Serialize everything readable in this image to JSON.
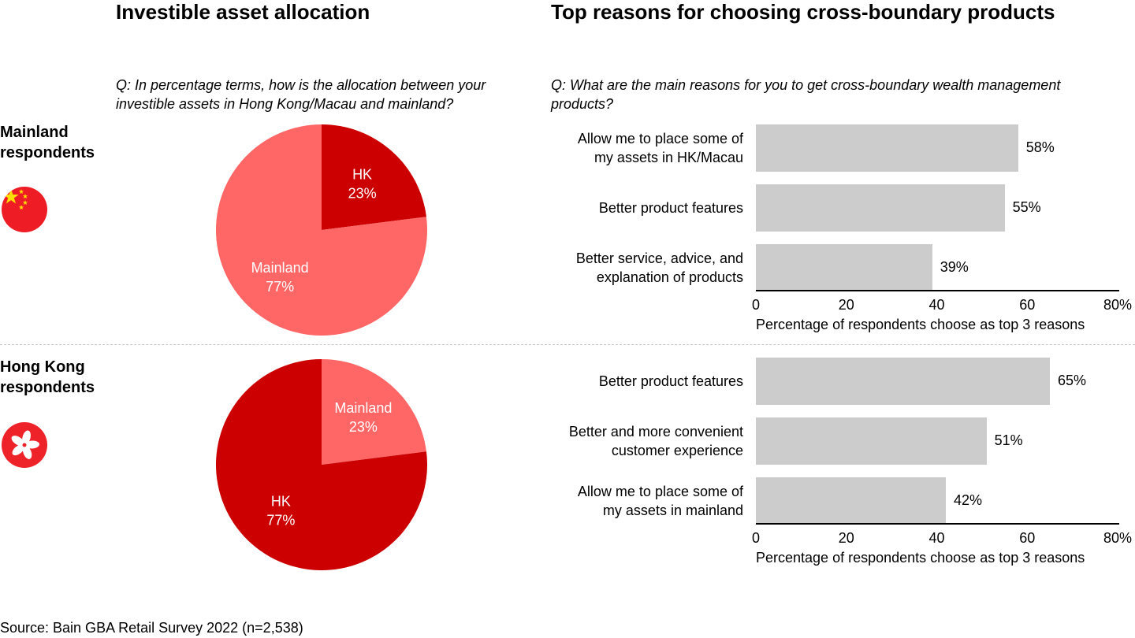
{
  "headings": {
    "left": "Investible asset allocation",
    "right": "Top reasons for choosing cross-boundary products"
  },
  "questions": {
    "left": "Q: In percentage terms, how is the allocation between your investible assets in Hong Kong/Macau and mainland?",
    "right": "Q: What are the main reasons for you to get cross-boundary wealth management products?"
  },
  "groups": {
    "mainland": {
      "label_line1": "Mainland",
      "label_line2": "respondents",
      "flag": "china-flag-icon"
    },
    "hongkong": {
      "label_line1": "Hong Kong",
      "label_line2": "respondents",
      "flag": "hong-kong-flag-icon"
    }
  },
  "colors": {
    "pie_dark": "#cc0000",
    "pie_light": "#ff6666",
    "bar": "#cccccc",
    "china_red": "#ee1c25",
    "china_star": "#ffde00",
    "hk_red": "#ee2229"
  },
  "source": "Source: Bain GBA Retail Survey 2022 (n=2,538)",
  "chart_data": [
    {
      "type": "pie",
      "group": "Mainland respondents",
      "slices": [
        {
          "name": "HK",
          "value": 23,
          "label": "HK",
          "pct": "23%"
        },
        {
          "name": "Mainland",
          "value": 77,
          "label": "Mainland",
          "pct": "77%"
        }
      ]
    },
    {
      "type": "bar",
      "group": "Mainland respondents",
      "orientation": "horizontal",
      "categories": [
        "Allow me to place some of my assets in HK/Macau",
        "Better product features",
        "Better service, advice, and explanation of products"
      ],
      "category_lines": [
        [
          "Allow me to place some of",
          "my assets in HK/Macau"
        ],
        [
          "Better product features"
        ],
        [
          "Better service, advice, and",
          "explanation of products"
        ]
      ],
      "values": [
        58,
        55,
        39
      ],
      "value_labels": [
        "58%",
        "55%",
        "39%"
      ],
      "xlim": [
        0,
        80
      ],
      "ticks": [
        "0",
        "20",
        "40",
        "60",
        "80%"
      ],
      "xlabel": "Percentage of respondents choose as top 3 reasons"
    },
    {
      "type": "pie",
      "group": "Hong Kong respondents",
      "slices": [
        {
          "name": "Mainland",
          "value": 23,
          "label": "Mainland",
          "pct": "23%"
        },
        {
          "name": "HK",
          "value": 77,
          "label": "HK",
          "pct": "77%"
        }
      ]
    },
    {
      "type": "bar",
      "group": "Hong Kong respondents",
      "orientation": "horizontal",
      "categories": [
        "Better product features",
        "Better and more convenient customer experience",
        "Allow me to place some of my assets in mainland"
      ],
      "category_lines": [
        [
          "Better product features"
        ],
        [
          "Better and more convenient",
          "customer experience"
        ],
        [
          "Allow me to place some of",
          "my assets in mainland"
        ]
      ],
      "values": [
        65,
        51,
        42
      ],
      "value_labels": [
        "65%",
        "51%",
        "42%"
      ],
      "xlim": [
        0,
        80
      ],
      "ticks": [
        "0",
        "20",
        "40",
        "60",
        "80%"
      ],
      "xlabel": "Percentage of respondents choose as top 3 reasons"
    }
  ]
}
